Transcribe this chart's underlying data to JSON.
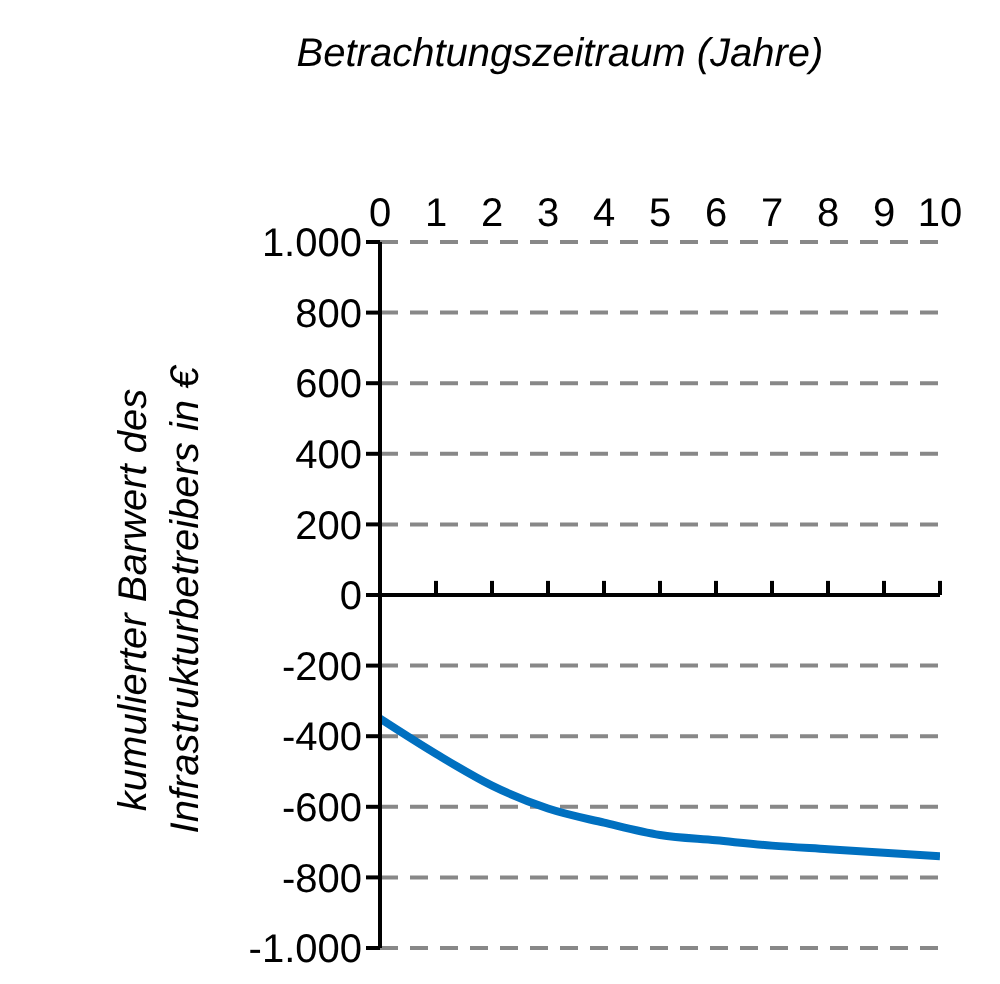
{
  "chart_data": {
    "type": "line",
    "xlabel": "Betrachtungszeitraum (Jahre)",
    "ylabel": "kumulierter Barwert des Infrastrukturbetreibers in €",
    "x": [
      0,
      1,
      2,
      3,
      4,
      5,
      6,
      7,
      8,
      9,
      10
    ],
    "series": [
      {
        "color": "#0070c0",
        "values": [
          -350,
          -450,
          -540,
          -605,
          -645,
          -680,
          -695,
          -710,
          -720,
          -730,
          -740
        ]
      }
    ],
    "xlim": [
      0,
      10
    ],
    "xticks": [
      0,
      1,
      2,
      3,
      4,
      5,
      6,
      7,
      8,
      9,
      10
    ],
    "ylim": [
      -1000,
      1000
    ],
    "yticks": [
      {
        "value": -1000,
        "label": "-1.000"
      },
      -800,
      -600,
      -400,
      -200,
      0,
      200,
      400,
      600,
      800,
      {
        "value": 1000,
        "label": "1.000"
      }
    ],
    "grid": "y",
    "legend": false,
    "marker": "none",
    "line_style": "solid"
  }
}
